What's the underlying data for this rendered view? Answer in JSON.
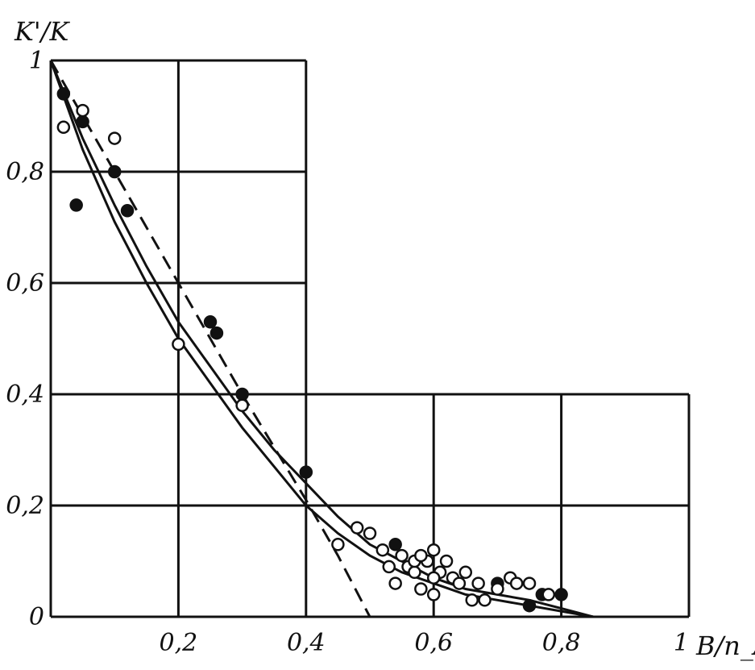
{
  "chart_data": {
    "type": "scatter",
    "title": "",
    "ylabel": "K'/K",
    "xlabel": "B/n_A",
    "xlim": [
      0,
      1.0
    ],
    "ylim": [
      0,
      1.0
    ],
    "x_ticks": [
      {
        "v": 0.2,
        "label": "0,2"
      },
      {
        "v": 0.4,
        "label": "0,4"
      },
      {
        "v": 0.6,
        "label": "0,6"
      },
      {
        "v": 0.8,
        "label": "0,8"
      },
      {
        "v": 1.0,
        "label": "1"
      }
    ],
    "y_ticks": [
      {
        "v": 0,
        "label": "0"
      },
      {
        "v": 0.2,
        "label": "0,2"
      },
      {
        "v": 0.4,
        "label": "0,4"
      },
      {
        "v": 0.6,
        "label": "0,6"
      },
      {
        "v": 0.8,
        "label": "0,8"
      },
      {
        "v": 1.0,
        "label": "1"
      }
    ],
    "grid": true,
    "series": [
      {
        "kind": "line",
        "style": "solid",
        "x": [
          0.0,
          0.05,
          0.1,
          0.15,
          0.2,
          0.25,
          0.3,
          0.35,
          0.4,
          0.45,
          0.5,
          0.55,
          0.6,
          0.65,
          0.7,
          0.75,
          0.8,
          0.85
        ],
        "y": [
          1.0,
          0.84,
          0.71,
          0.6,
          0.5,
          0.42,
          0.34,
          0.27,
          0.2,
          0.15,
          0.11,
          0.08,
          0.06,
          0.04,
          0.03,
          0.02,
          0.01,
          0.0
        ]
      },
      {
        "kind": "line",
        "style": "solid",
        "x": [
          0.0,
          0.05,
          0.1,
          0.15,
          0.2,
          0.25,
          0.3,
          0.35,
          0.4,
          0.45,
          0.5,
          0.55,
          0.6,
          0.65,
          0.7,
          0.75,
          0.8,
          0.85
        ],
        "y": [
          1.0,
          0.86,
          0.74,
          0.63,
          0.53,
          0.45,
          0.37,
          0.3,
          0.24,
          0.18,
          0.13,
          0.1,
          0.07,
          0.05,
          0.04,
          0.03,
          0.015,
          0.0
        ]
      },
      {
        "kind": "line",
        "style": "dashed",
        "x": [
          0.0,
          0.1,
          0.2,
          0.3,
          0.4,
          0.45,
          0.5
        ],
        "y": [
          1.0,
          0.8,
          0.6,
          0.4,
          0.21,
          0.11,
          0.0
        ]
      },
      {
        "kind": "points",
        "marker": "filled",
        "x": [
          0.02,
          0.05,
          0.1,
          0.04,
          0.12,
          0.25,
          0.26,
          0.3,
          0.4,
          0.7,
          0.75,
          0.8,
          0.77,
          0.54
        ],
        "y": [
          0.94,
          0.89,
          0.8,
          0.74,
          0.73,
          0.53,
          0.51,
          0.4,
          0.26,
          0.06,
          0.02,
          0.04,
          0.04,
          0.13
        ]
      },
      {
        "kind": "points",
        "marker": "open",
        "x": [
          0.02,
          0.05,
          0.1,
          0.2,
          0.3,
          0.45,
          0.48,
          0.5,
          0.52,
          0.53,
          0.54,
          0.55,
          0.56,
          0.57,
          0.57,
          0.58,
          0.59,
          0.6,
          0.6,
          0.61,
          0.62,
          0.63,
          0.64,
          0.65,
          0.66,
          0.67,
          0.68,
          0.7,
          0.72,
          0.73,
          0.75,
          0.78,
          0.6,
          0.58
        ],
        "y": [
          0.88,
          0.91,
          0.86,
          0.49,
          0.38,
          0.13,
          0.16,
          0.15,
          0.12,
          0.09,
          0.06,
          0.11,
          0.09,
          0.08,
          0.1,
          0.05,
          0.1,
          0.12,
          0.04,
          0.08,
          0.1,
          0.07,
          0.06,
          0.08,
          0.03,
          0.06,
          0.03,
          0.05,
          0.07,
          0.06,
          0.06,
          0.04,
          0.07,
          0.11
        ]
      }
    ]
  }
}
